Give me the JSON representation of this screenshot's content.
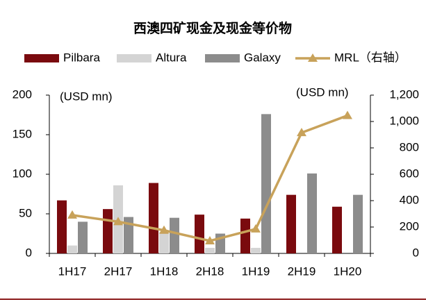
{
  "chart_data": {
    "type": "bar",
    "title": "西澳四矿现金及现金等价物",
    "annotations": [
      "(USD mn)",
      "(USD mn)"
    ],
    "categories": [
      "1H17",
      "2H17",
      "1H18",
      "2H18",
      "1H19",
      "2H19",
      "1H20"
    ],
    "series": [
      {
        "name": "Pilbara",
        "color": "#7a0a0e",
        "values": [
          67,
          56,
          89,
          49,
          44,
          74,
          59
        ]
      },
      {
        "name": "Altura",
        "color": "#d4d4d4",
        "values": [
          10,
          86,
          27,
          7,
          7,
          null,
          null
        ]
      },
      {
        "name": "Galaxy",
        "color": "#8c8c8c",
        "values": [
          40,
          46,
          45,
          25,
          176,
          101,
          74
        ]
      },
      {
        "name": "MRL（右轴）",
        "color": "#c8a25a",
        "type": "line",
        "axis": "y2",
        "values": [
          290,
          240,
          175,
          95,
          185,
          915,
          1045
        ]
      }
    ],
    "ylim": [
      0,
      200
    ],
    "yticks": [
      0,
      50,
      100,
      150,
      200
    ],
    "y2lim": [
      0,
      1200
    ],
    "y2ticks": [
      0,
      200,
      400,
      600,
      800,
      {
        "value": 1000,
        "label": "1,000"
      },
      {
        "value": 1200,
        "label": "1,200"
      }
    ]
  }
}
